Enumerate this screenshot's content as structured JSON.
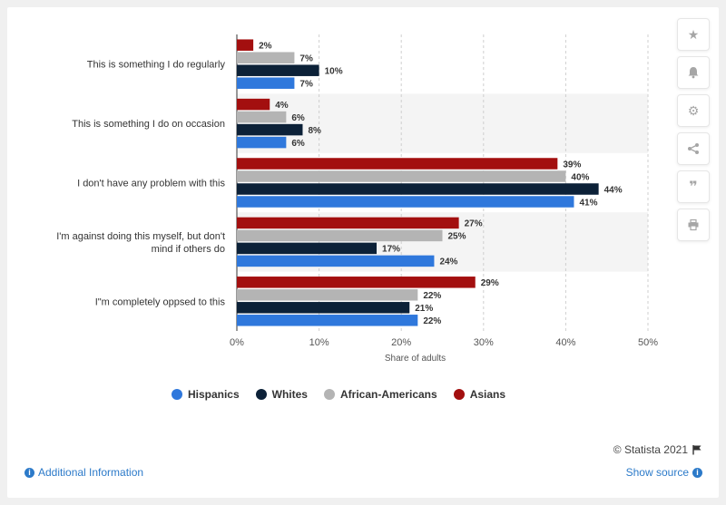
{
  "chart_data": {
    "type": "bar",
    "orientation": "horizontal",
    "categories": [
      "This is something I do regularly",
      "This is something I do on occasion",
      "I don't have any problem with this",
      "I'm against doing this myself, but don't mind if others do",
      "I\"m completely oppsed to this"
    ],
    "series": [
      {
        "name": "Asians",
        "color": "#a30f0f",
        "values": [
          2,
          4,
          39,
          27,
          29
        ]
      },
      {
        "name": "African-Americans",
        "color": "#b4b4b4",
        "values": [
          7,
          6,
          40,
          25,
          22
        ]
      },
      {
        "name": "Whites",
        "color": "#0c2138",
        "values": [
          10,
          8,
          44,
          17,
          21
        ]
      },
      {
        "name": "Hispanics",
        "color": "#2f78dc",
        "values": [
          7,
          6,
          41,
          24,
          22
        ]
      }
    ],
    "xlabel": "Share of adults",
    "xlim": [
      0,
      50
    ],
    "xticks": [
      "0%",
      "10%",
      "20%",
      "30%",
      "40%",
      "50%"
    ],
    "value_suffix": "%",
    "grid": true,
    "legend_position": "bottom"
  },
  "legend": [
    "Hispanics",
    "Whites",
    "African-Americans",
    "Asians"
  ],
  "sidebar": {
    "icons": [
      "star-icon",
      "bell-icon",
      "gear-icon",
      "share-icon",
      "quote-icon",
      "print-icon"
    ]
  },
  "footer": {
    "copyright": "© Statista 2021",
    "additional_info": "Additional Information",
    "show_source": "Show source"
  }
}
